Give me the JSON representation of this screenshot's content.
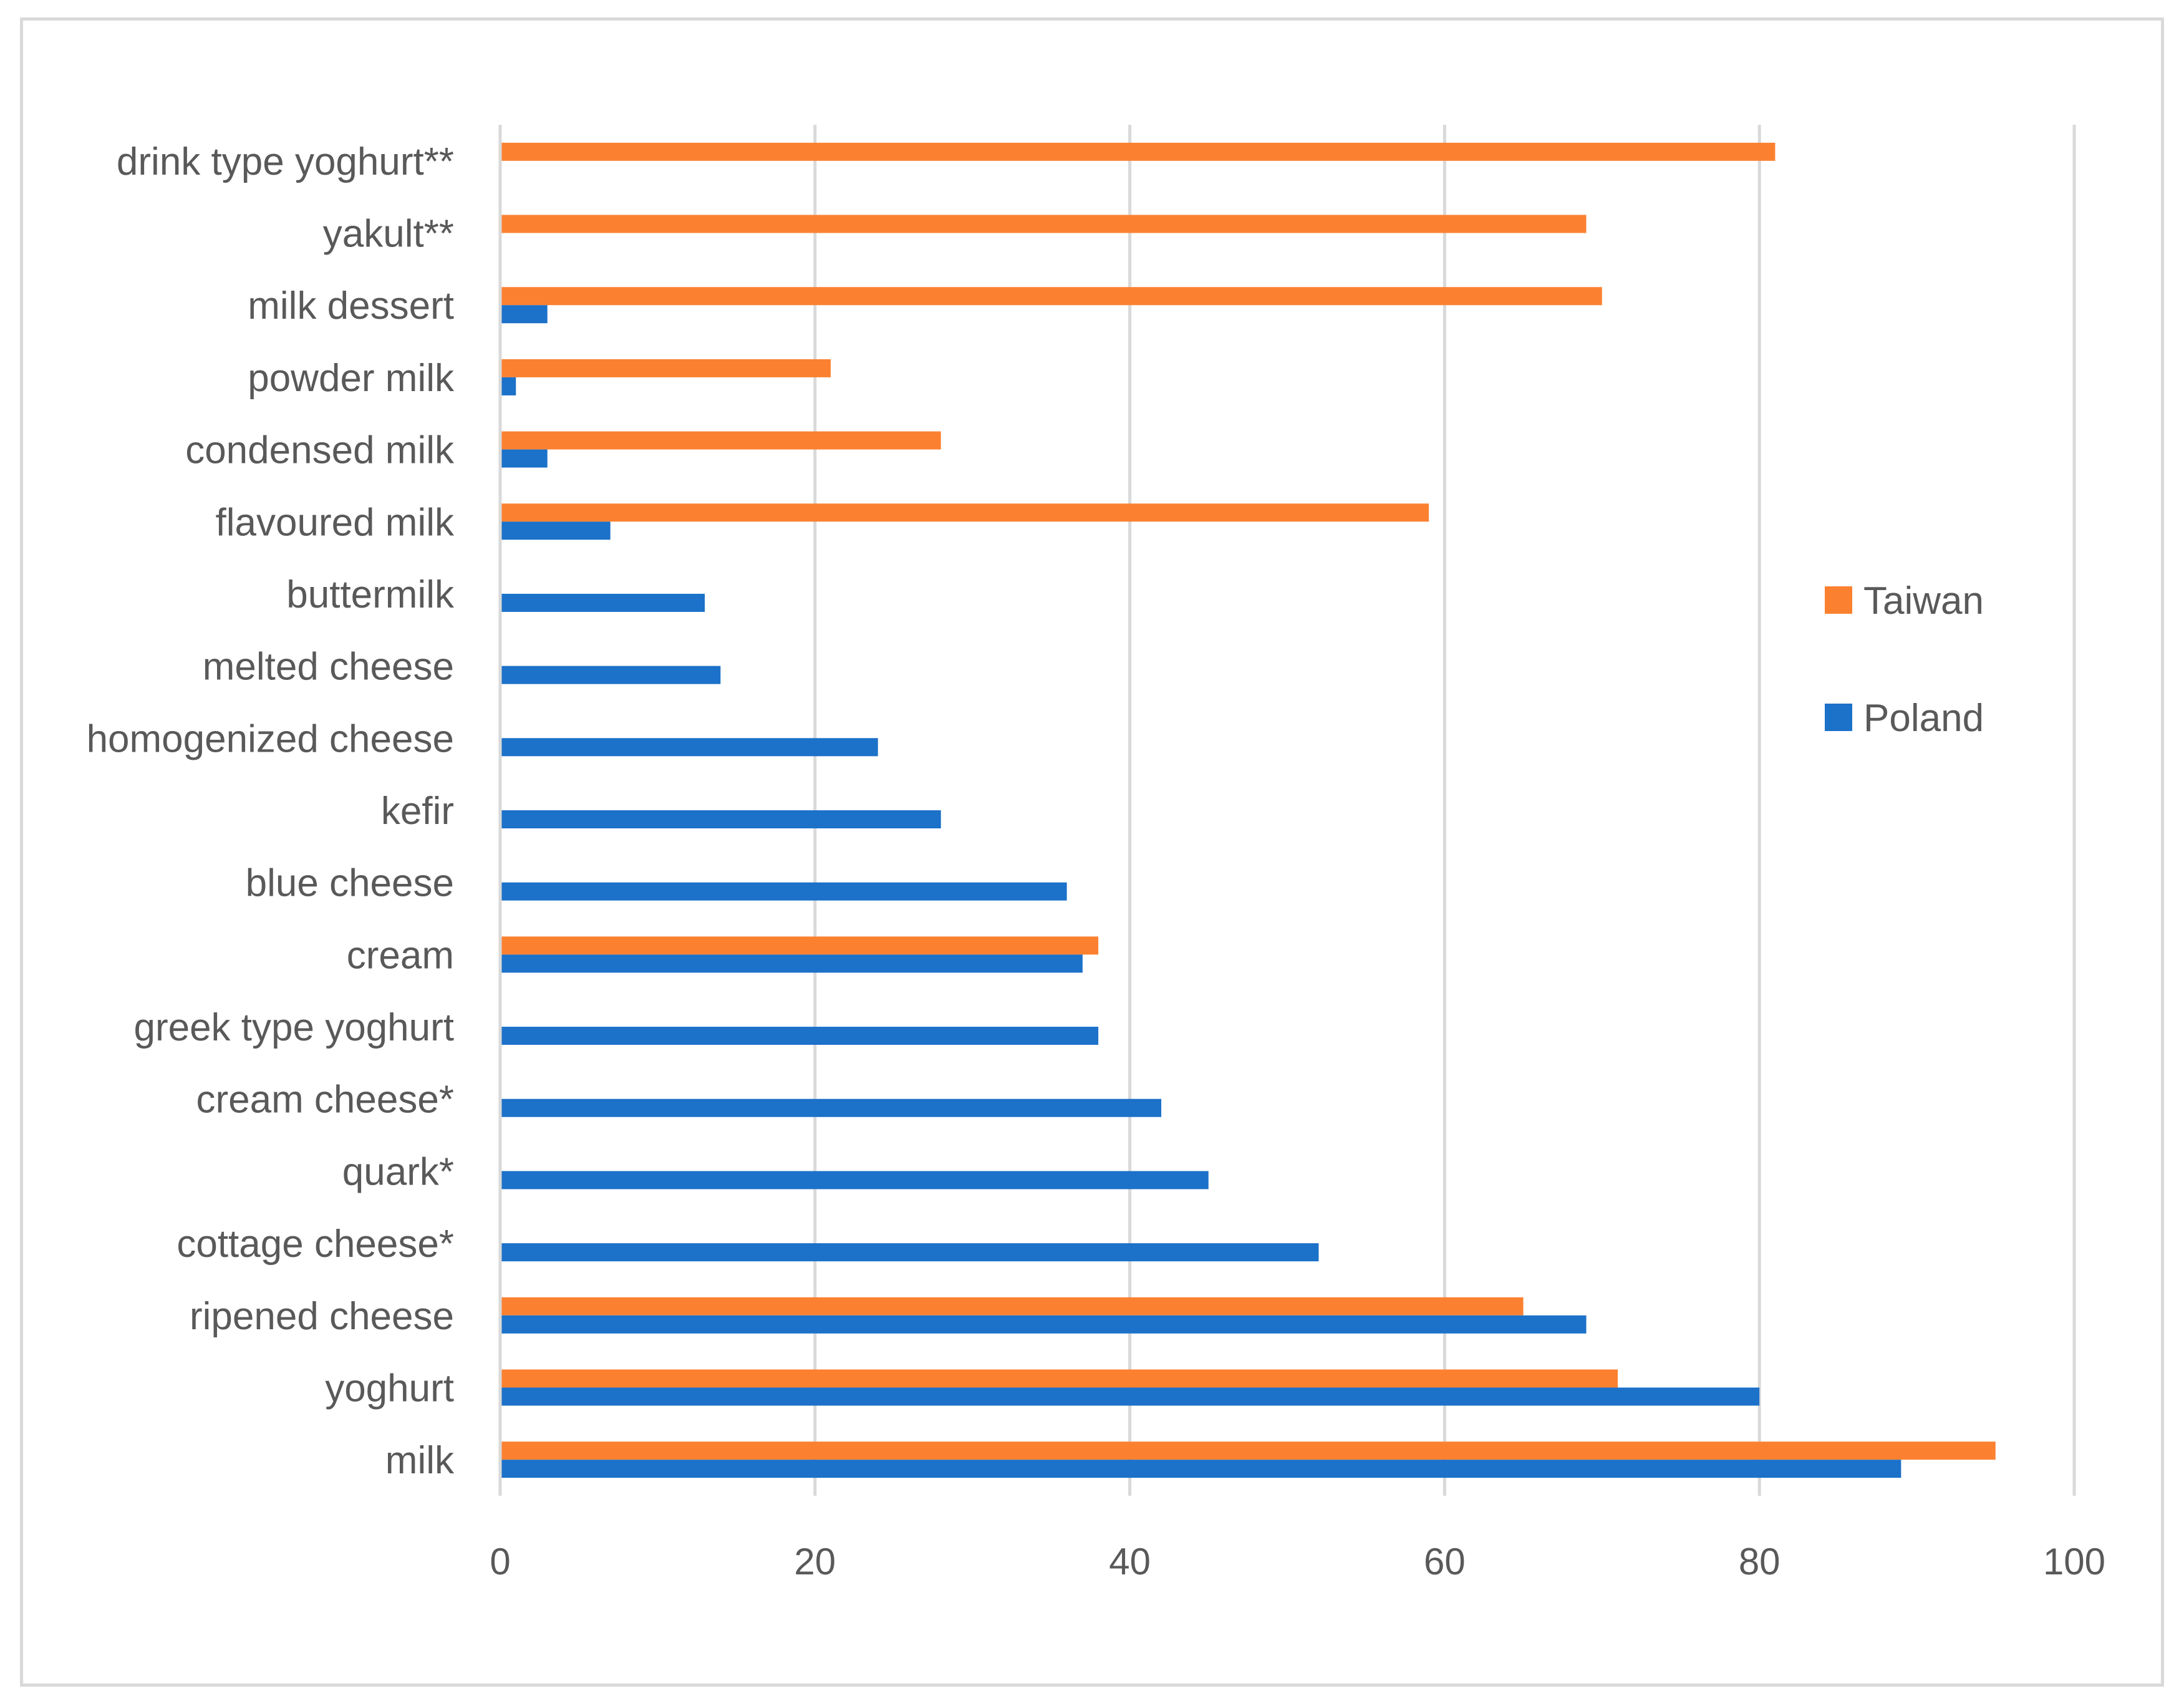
{
  "chart_data": {
    "type": "bar",
    "orientation": "horizontal",
    "title": "",
    "xlabel": "",
    "ylabel": "",
    "xlim": [
      0,
      100
    ],
    "x_ticks": [
      0,
      20,
      40,
      60,
      80,
      100
    ],
    "grid": true,
    "legend_position": "right",
    "categories": [
      "drink type yoghurt**",
      "yakult**",
      "milk dessert",
      "powder milk",
      "condensed milk",
      "flavoured milk",
      "buttermilk",
      "melted cheese",
      "homogenized cheese",
      "kefir",
      "blue cheese",
      "cream",
      "greek type yoghurt",
      "cream cheese*",
      "quark*",
      "cottage cheese*",
      "ripened cheese",
      "yoghurt",
      "milk"
    ],
    "series": [
      {
        "name": "Taiwan",
        "color": "#fb8131",
        "values": [
          81,
          69,
          70,
          21,
          28,
          59,
          null,
          null,
          null,
          null,
          null,
          38,
          null,
          null,
          null,
          null,
          65,
          71,
          95
        ]
      },
      {
        "name": "Poland",
        "color": "#1c71c9",
        "values": [
          null,
          null,
          3,
          1,
          3,
          7,
          13,
          14,
          24,
          28,
          36,
          37,
          38,
          42,
          45,
          52,
          69,
          80,
          89
        ]
      }
    ]
  }
}
